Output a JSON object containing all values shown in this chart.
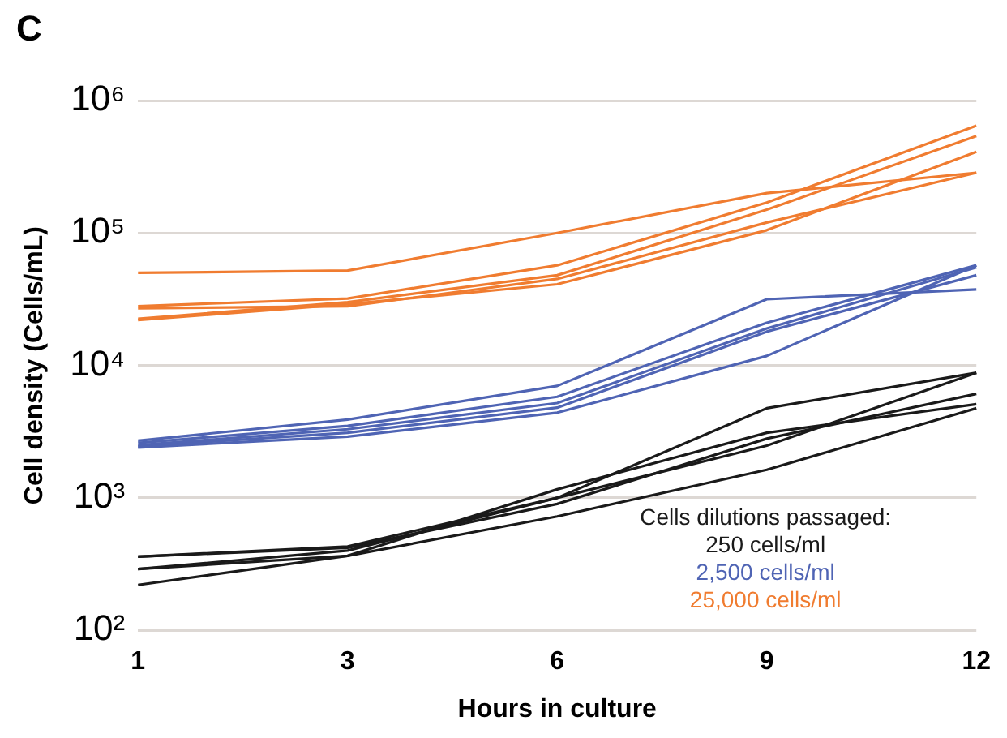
{
  "chart_data": {
    "type": "line",
    "annotations": [
      "C"
    ],
    "xlabel": "Hours in culture",
    "ylabel": "Cell density (Cells/mL)",
    "legend_title": "Cells dilutions passaged:",
    "categories": [
      "1",
      "3",
      "6",
      "9",
      "12"
    ],
    "log": "y",
    "ylim": [
      100,
      1000000
    ],
    "yticks": [
      {
        "value": 100,
        "label": "10²"
      },
      {
        "value": 1000,
        "label": "10³"
      },
      {
        "value": 10000,
        "label": "10⁴"
      },
      {
        "value": 100000,
        "label": "10⁵"
      },
      {
        "value": 1000000,
        "label": "10⁶"
      }
    ],
    "grid": "y",
    "legend": "bottom right",
    "marker": "none",
    "line_style": "solid",
    "series": [
      {
        "name": "250 cells/ml",
        "color": "#1a1a1a",
        "values": [
          360,
          430,
          1000,
          4750,
          8800
        ]
      },
      {
        "color": "#1a1a1a",
        "values": [
          290,
          365,
          1160,
          3100,
          5100
        ]
      },
      {
        "color": "#1a1a1a",
        "values": [
          220,
          365,
          725,
          1630,
          4750
        ]
      },
      {
        "color": "#1a1a1a",
        "values": [
          290,
          400,
          1000,
          2480,
          8800
        ]
      },
      {
        "color": "#1a1a1a",
        "values": [
          360,
          420,
          900,
          2800,
          6100
        ]
      },
      {
        "name": "2,500 cells/ml",
        "color": "#4f64b4",
        "values": [
          2700,
          3900,
          7000,
          31600,
          37500
        ]
      },
      {
        "color": "#4f64b4",
        "values": [
          2600,
          3500,
          5800,
          21000,
          57000
        ]
      },
      {
        "color": "#4f64b4",
        "values": [
          2500,
          3300,
          5200,
          19000,
          55000
        ]
      },
      {
        "color": "#4f64b4",
        "values": [
          2450,
          3100,
          4800,
          18000,
          48000
        ]
      },
      {
        "color": "#4f64b4",
        "values": [
          2400,
          2900,
          4400,
          11800,
          57000
        ]
      },
      {
        "name": "25,000 cells/ml",
        "color": "#f07c30",
        "values": [
          50000,
          52000,
          100000,
          200000,
          285000
        ]
      },
      {
        "color": "#f07c30",
        "values": [
          28000,
          32000,
          57000,
          170000,
          645000
        ]
      },
      {
        "color": "#f07c30",
        "values": [
          22500,
          30000,
          48000,
          150000,
          540000
        ]
      },
      {
        "color": "#f07c30",
        "values": [
          22000,
          29000,
          41000,
          105000,
          410000
        ]
      },
      {
        "color": "#f07c30",
        "values": [
          27000,
          28000,
          45000,
          120000,
          285000
        ]
      }
    ]
  }
}
